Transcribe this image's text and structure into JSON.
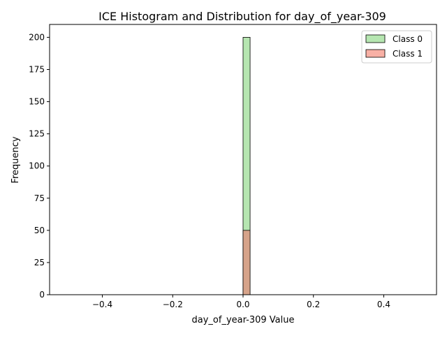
{
  "chart_data": {
    "type": "bar",
    "title": "ICE Histogram and Distribution for day_of_year-309",
    "xlabel": "day_of_year-309 Value",
    "ylabel": "Frequency",
    "xlim": [
      -0.55,
      0.55
    ],
    "ylim": [
      0,
      210
    ],
    "grid": false,
    "legend_position": "top-right",
    "x_ticks": [
      -0.4,
      -0.2,
      0.0,
      0.2,
      0.4
    ],
    "x_tick_labels": [
      "−0.4",
      "−0.2",
      "0.0",
      "0.2",
      "0.4"
    ],
    "y_ticks": [
      0,
      25,
      50,
      75,
      100,
      125,
      150,
      175,
      200
    ],
    "y_tick_labels": [
      "0",
      "25",
      "50",
      "75",
      "100",
      "125",
      "150",
      "175",
      "200"
    ],
    "series": [
      {
        "name": "Class 0",
        "color": "#b6e6b1",
        "bins": [
          {
            "x0": 0.0,
            "x1": 0.02,
            "count": 200
          }
        ]
      },
      {
        "name": "Class 1",
        "color": "#f8b0a5",
        "bins": [
          {
            "x0": 0.0,
            "x1": 0.02,
            "count": 50
          }
        ]
      }
    ],
    "overlap_color": "#d6a38a"
  }
}
